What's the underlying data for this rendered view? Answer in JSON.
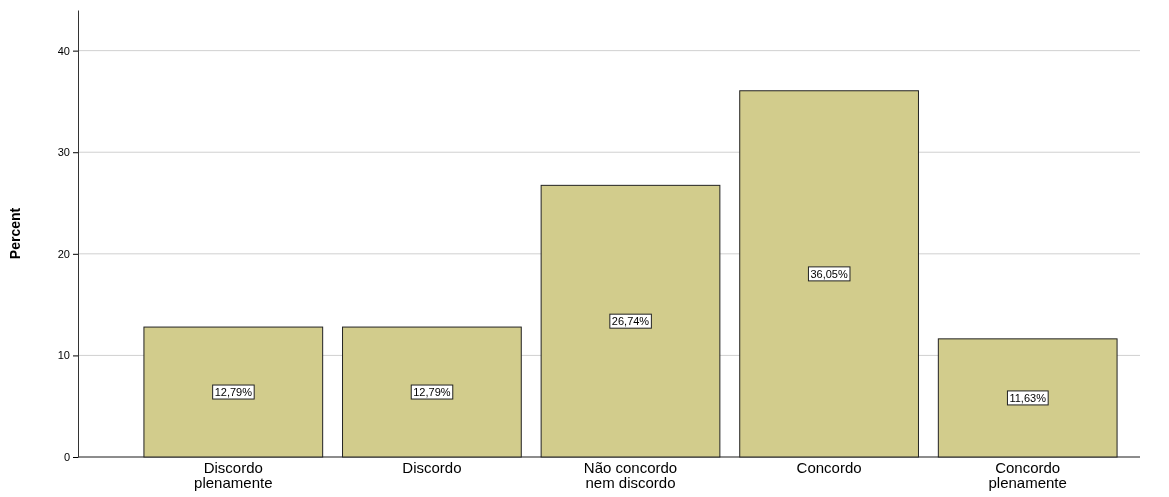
{
  "chart_data": {
    "type": "bar",
    "ylabel": "Percent",
    "categories": [
      "Discordo plenamente",
      "Discordo",
      "Não concordo nem discordo",
      "Concordo",
      "Concordo plenamente"
    ],
    "values": [
      12.79,
      12.79,
      26.74,
      36.05,
      11.63
    ],
    "value_labels": [
      "12,79%",
      "12,79%",
      "26,74%",
      "36,05%",
      "11,63%"
    ],
    "color": "#d2cc8c",
    "ylim": [
      0,
      44
    ],
    "yticks": [
      0,
      10,
      20,
      30,
      40
    ],
    "grid": "y"
  }
}
